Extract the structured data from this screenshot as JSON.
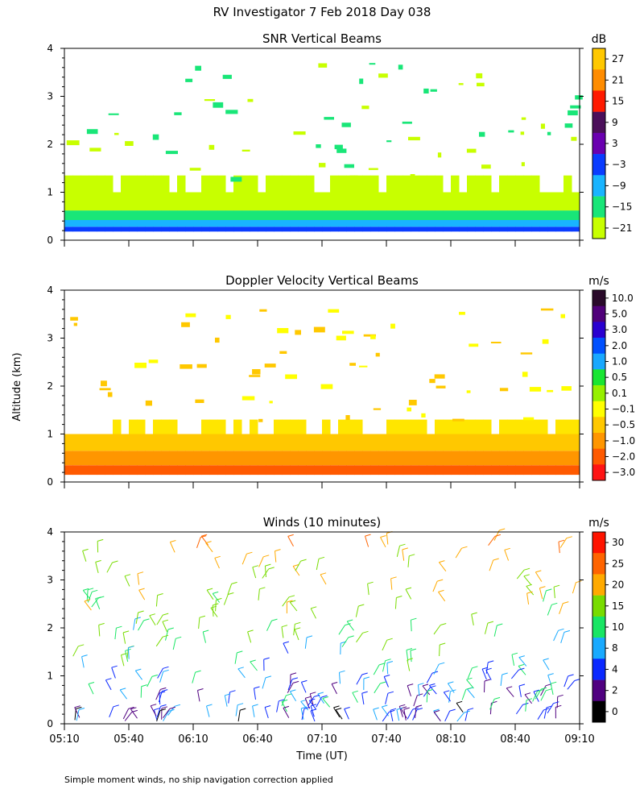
{
  "page": {
    "title": "RV Investigator   7 Feb 2018 Day 038",
    "y_axis_label": "Altitude (km)",
    "x_axis_label": "Time (UT)",
    "footnote": "Simple moment winds, no ship navigation correction applied"
  },
  "chart_data": [
    {
      "type": "heatmap",
      "title": "SNR Vertical Beams",
      "ylabel": "Altitude (km)",
      "ylim": [
        0,
        4
      ],
      "yticks": [
        "0",
        "1",
        "2",
        "3",
        "4"
      ],
      "xlim": [
        "05:10",
        "09:10"
      ],
      "colorbar": {
        "unit": "dB",
        "levels": [
          "27",
          "21",
          "15",
          "9",
          "3",
          "−3",
          "−9",
          "−15",
          "−21"
        ],
        "colors": [
          "#ffc800",
          "#ff8c00",
          "#ff1a00",
          "#4b0f5a",
          "#6a00b0",
          "#0a3cff",
          "#19b4ff",
          "#19e678",
          "#c8ff00"
        ]
      },
      "layers": [
        {
          "alt": [
            0.0,
            0.2
          ],
          "color": "#e8e8e8"
        },
        {
          "alt": [
            0.18,
            0.28
          ],
          "color": "#0a3cff"
        },
        {
          "alt": [
            0.28,
            0.42
          ],
          "color": "#19b4ff"
        },
        {
          "alt": [
            0.42,
            0.62
          ],
          "color": "#19e678"
        },
        {
          "alt": [
            0.62,
            1.0
          ],
          "color": "#c8ff00"
        },
        {
          "alt": [
            1.0,
            1.35
          ],
          "color": "#c8ff00"
        }
      ]
    },
    {
      "type": "heatmap",
      "title": "Doppler Velocity Vertical Beams",
      "ylabel": "Altitude (km)",
      "ylim": [
        0,
        4
      ],
      "yticks": [
        "0",
        "1",
        "2",
        "3",
        "4"
      ],
      "xlim": [
        "05:10",
        "09:10"
      ],
      "colorbar": {
        "unit": "m/s",
        "levels": [
          "10.0",
          "5.0",
          "3.0",
          "2.0",
          "1.0",
          "0.5",
          "0.1",
          "−0.1",
          "−0.5",
          "−1.0",
          "−2.0",
          "−3.0"
        ],
        "colors": [
          "#2a0a2a",
          "#50007a",
          "#2a00d0",
          "#0050ff",
          "#19a8ff",
          "#19e632",
          "#96f000",
          "#ffff00",
          "#ffc800",
          "#ff9600",
          "#ff5a00",
          "#ff1414"
        ]
      },
      "layers": [
        {
          "alt": [
            0.15,
            0.35
          ],
          "color": "#ff5a00"
        },
        {
          "alt": [
            0.35,
            0.65
          ],
          "color": "#ff9600"
        },
        {
          "alt": [
            0.65,
            1.0
          ],
          "color": "#ffc800"
        },
        {
          "alt": [
            1.0,
            1.3
          ],
          "color": "#ffe600"
        }
      ]
    },
    {
      "type": "scatter",
      "title": "Winds (10 minutes)",
      "ylabel": "Altitude (km)",
      "ylim": [
        0,
        4
      ],
      "yticks": [
        "0",
        "1",
        "2",
        "3",
        "4"
      ],
      "xlabel": "Time (UT)",
      "x_ticks": [
        "05:10",
        "05:40",
        "06:10",
        "06:40",
        "07:10",
        "07:40",
        "08:10",
        "08:40",
        "09:10"
      ],
      "colorbar": {
        "unit": "m/s",
        "levels": [
          "30",
          "25",
          "20",
          "15",
          "10",
          "8",
          "4",
          "2",
          "0"
        ],
        "colors": [
          "#ff1400",
          "#ff6400",
          "#ffaa00",
          "#78dc00",
          "#19e664",
          "#19aaff",
          "#0a28ff",
          "#500080",
          "#000000"
        ]
      }
    }
  ]
}
